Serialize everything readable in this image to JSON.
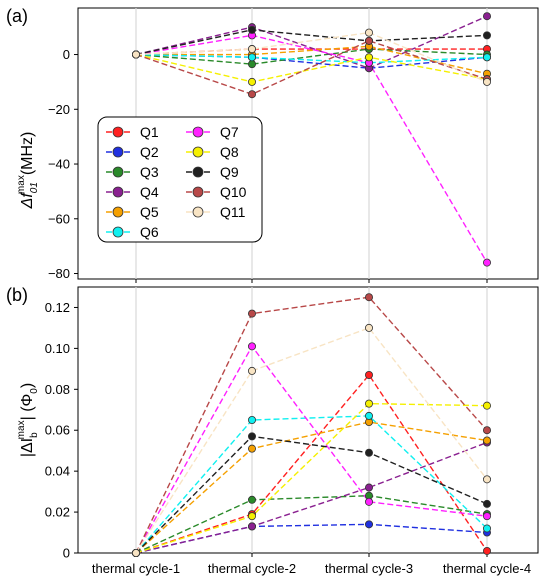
{
  "chart_data": [
    {
      "type": "line",
      "panel_label": "(a)",
      "ylabel": "Δf01max(MHz)",
      "ylabel_parts": {
        "base": "Δf",
        "sub": "01",
        "sup": "max",
        "unit": "(MHz)"
      },
      "categories": [
        "thermal cycle-1",
        "thermal cycle-2",
        "thermal cycle-3",
        "thermal cycle-4"
      ],
      "ylim": [
        -82,
        17
      ],
      "yticks": [
        0,
        -20,
        -40,
        -60,
        -80
      ],
      "ytick_labels": [
        "0",
        "−20",
        "−40",
        "−60",
        "−80"
      ],
      "grid": "vertical",
      "legend": {
        "placement": "center-left",
        "ncol": 2
      },
      "series": [
        {
          "name": "Q1",
          "values": [
            0,
            2,
            2,
            2
          ]
        },
        {
          "name": "Q2",
          "values": [
            0,
            -1,
            -5,
            -1
          ]
        },
        {
          "name": "Q3",
          "values": [
            0,
            -3.5,
            2,
            0
          ]
        },
        {
          "name": "Q4",
          "values": [
            0,
            10,
            -5,
            14
          ]
        },
        {
          "name": "Q5",
          "values": [
            0,
            0,
            3,
            -7
          ]
        },
        {
          "name": "Q6",
          "values": [
            0,
            -1,
            -3,
            -1
          ]
        },
        {
          "name": "Q7",
          "values": [
            0,
            7,
            -3,
            -76
          ]
        },
        {
          "name": "Q8",
          "values": [
            0,
            -10,
            -1,
            -9
          ]
        },
        {
          "name": "Q9",
          "values": [
            0,
            9,
            5,
            7
          ]
        },
        {
          "name": "Q10",
          "values": [
            0,
            -14.5,
            5,
            -9
          ]
        },
        {
          "name": "Q11",
          "values": [
            0,
            2,
            8,
            -10
          ]
        }
      ]
    },
    {
      "type": "line",
      "panel_label": "(b)",
      "ylabel": "|ΔIbmax| (Φ0)",
      "ylabel_parts": {
        "base": "|ΔI",
        "sub": "b",
        "sup": "max",
        "tail": "| (Φ",
        "tail_sub": "0",
        "end": ")"
      },
      "categories": [
        "thermal cycle-1",
        "thermal cycle-2",
        "thermal cycle-3",
        "thermal cycle-4"
      ],
      "ylim": [
        0,
        0.13
      ],
      "yticks": [
        0,
        0.02,
        0.04,
        0.06,
        0.08,
        0.1,
        0.12
      ],
      "ytick_labels": [
        "0",
        "0.02",
        "0.04",
        "0.06",
        "0.08",
        "0.10",
        "0.12"
      ],
      "grid": "vertical",
      "series": [
        {
          "name": "Q1",
          "values": [
            0,
            0.019,
            0.087,
            0.001
          ]
        },
        {
          "name": "Q2",
          "values": [
            0,
            0.013,
            0.014,
            0.01
          ]
        },
        {
          "name": "Q3",
          "values": [
            0,
            0.026,
            0.028,
            0.019
          ]
        },
        {
          "name": "Q4",
          "values": [
            0,
            0.013,
            0.032,
            0.054
          ]
        },
        {
          "name": "Q5",
          "values": [
            0,
            0.051,
            0.064,
            0.055
          ]
        },
        {
          "name": "Q6",
          "values": [
            0,
            0.065,
            0.067,
            0.012
          ]
        },
        {
          "name": "Q7",
          "values": [
            0,
            0.101,
            0.025,
            0.018
          ]
        },
        {
          "name": "Q8",
          "values": [
            0,
            0.018,
            0.073,
            0.072
          ]
        },
        {
          "name": "Q9",
          "values": [
            0,
            0.057,
            0.049,
            0.024
          ]
        },
        {
          "name": "Q10",
          "values": [
            0,
            0.117,
            0.125,
            0.06
          ]
        },
        {
          "name": "Q11",
          "values": [
            0,
            0.089,
            0.11,
            0.036
          ]
        }
      ]
    }
  ],
  "series_colors": {
    "Q1": "#ff2020",
    "Q2": "#2030e0",
    "Q3": "#2a8a2a",
    "Q4": "#8a2090",
    "Q5": "#f5a000",
    "Q6": "#10f0f0",
    "Q7": "#ff20ff",
    "Q8": "#f5f000",
    "Q9": "#202020",
    "Q10": "#b84848",
    "Q11": "#f8e4c4"
  },
  "legend_dashed": {
    "Q1": true,
    "Q2": true,
    "Q3": true,
    "Q4": true,
    "Q5": true,
    "Q6": true,
    "Q7": true,
    "Q8": true,
    "Q9": true,
    "Q10": true,
    "Q11": true
  }
}
